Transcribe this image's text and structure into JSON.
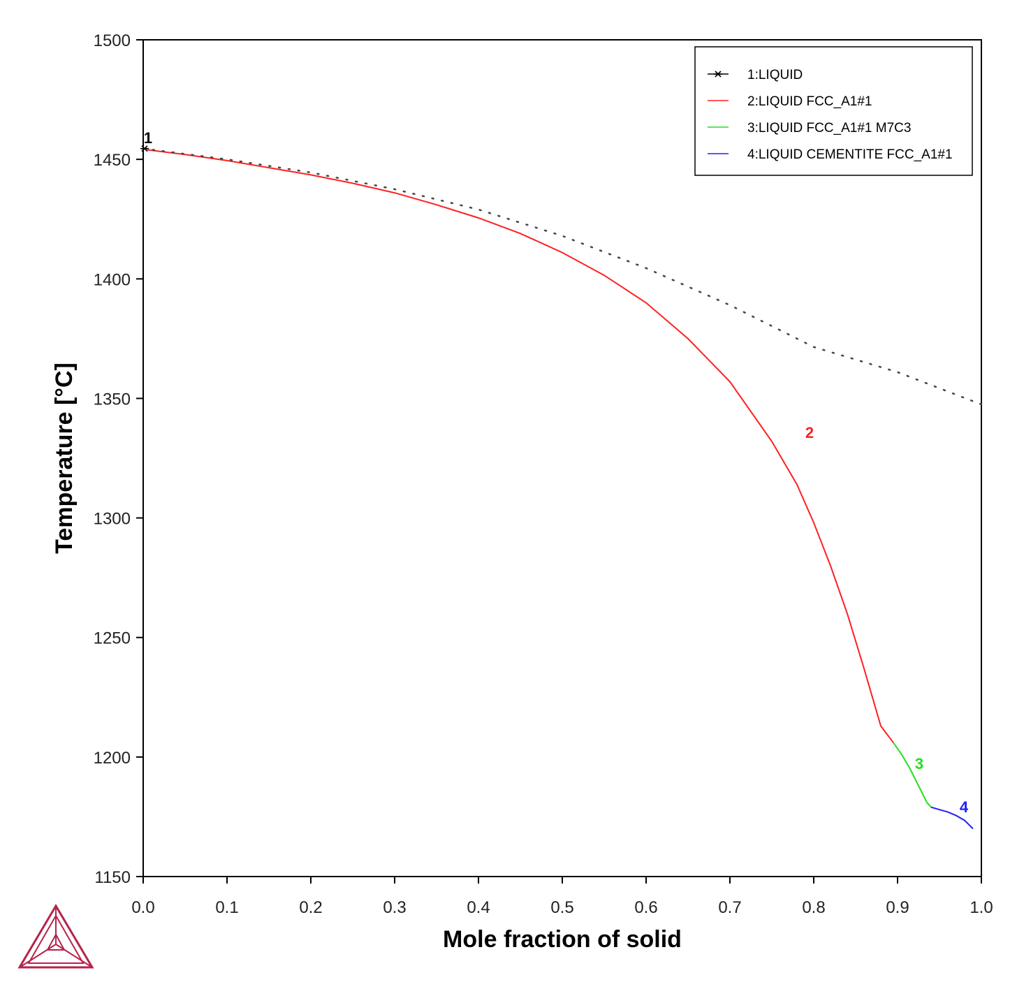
{
  "chart_data": {
    "type": "line",
    "title": "",
    "xlabel": "Mole fraction of solid",
    "ylabel": "Temperature [°C]",
    "xlim": [
      0.0,
      1.0
    ],
    "ylim": [
      1150,
      1500
    ],
    "xticks": [
      "0.0",
      "0.1",
      "0.2",
      "0.3",
      "0.4",
      "0.5",
      "0.6",
      "0.7",
      "0.8",
      "0.9",
      "1.0"
    ],
    "yticks": [
      "1150",
      "1200",
      "1250",
      "1300",
      "1350",
      "1400",
      "1450",
      "1500"
    ],
    "grid": false,
    "legend_position": "top-right",
    "legend": [
      "1:LIQUID",
      "2:LIQUID FCC_A1#1",
      "3:LIQUID FCC_A1#1 M7C3",
      "4:LIQUID CEMENTITE FCC_A1#1"
    ],
    "series": [
      {
        "name": "1:LIQUID",
        "label": "1",
        "color": "#000000",
        "style": "solid-marker",
        "x": [
          0.0,
          0.005
        ],
        "y": [
          1454.5,
          1454.5
        ]
      },
      {
        "name": "2:LIQUID FCC_A1#1",
        "label": "2",
        "color": "#ff2020",
        "style": "solid",
        "x": [
          0.005,
          0.05,
          0.1,
          0.15,
          0.2,
          0.25,
          0.3,
          0.35,
          0.4,
          0.45,
          0.5,
          0.55,
          0.6,
          0.65,
          0.7,
          0.75,
          0.78,
          0.8,
          0.82,
          0.84,
          0.86,
          0.87,
          0.88,
          0.895
        ],
        "y": [
          1454,
          1452,
          1449.5,
          1446.5,
          1443.5,
          1440,
          1436,
          1431,
          1425.5,
          1419,
          1411,
          1401.5,
          1390,
          1375,
          1357,
          1332,
          1314,
          1298,
          1280,
          1260,
          1237,
          1225,
          1213,
          1206
        ]
      },
      {
        "name": "3:LIQUID FCC_A1#1 M7C3",
        "label": "3",
        "color": "#20e020",
        "style": "solid",
        "x": [
          0.895,
          0.905,
          0.915,
          0.925,
          0.935,
          0.94
        ],
        "y": [
          1206,
          1201,
          1195,
          1188,
          1181,
          1179
        ]
      },
      {
        "name": "4:LIQUID CEMENTITE FCC_A1#1",
        "label": "4",
        "color": "#2020ff",
        "style": "solid",
        "x": [
          0.94,
          0.95,
          0.96,
          0.97,
          0.98,
          0.99
        ],
        "y": [
          1179,
          1178,
          1177,
          1175.5,
          1173.5,
          1170
        ]
      },
      {
        "name": "",
        "color": "#444444",
        "style": "dotted",
        "x": [
          0.0,
          0.1,
          0.2,
          0.3,
          0.4,
          0.5,
          0.6,
          0.7,
          0.8,
          0.9,
          1.0
        ],
        "y": [
          1454.5,
          1450,
          1444.5,
          1437.5,
          1429,
          1418,
          1404.5,
          1389,
          1371.5,
          1361,
          1347.5
        ]
      }
    ]
  },
  "logo": {
    "name": "thermo-calc-logo",
    "color": "#b5244a"
  }
}
